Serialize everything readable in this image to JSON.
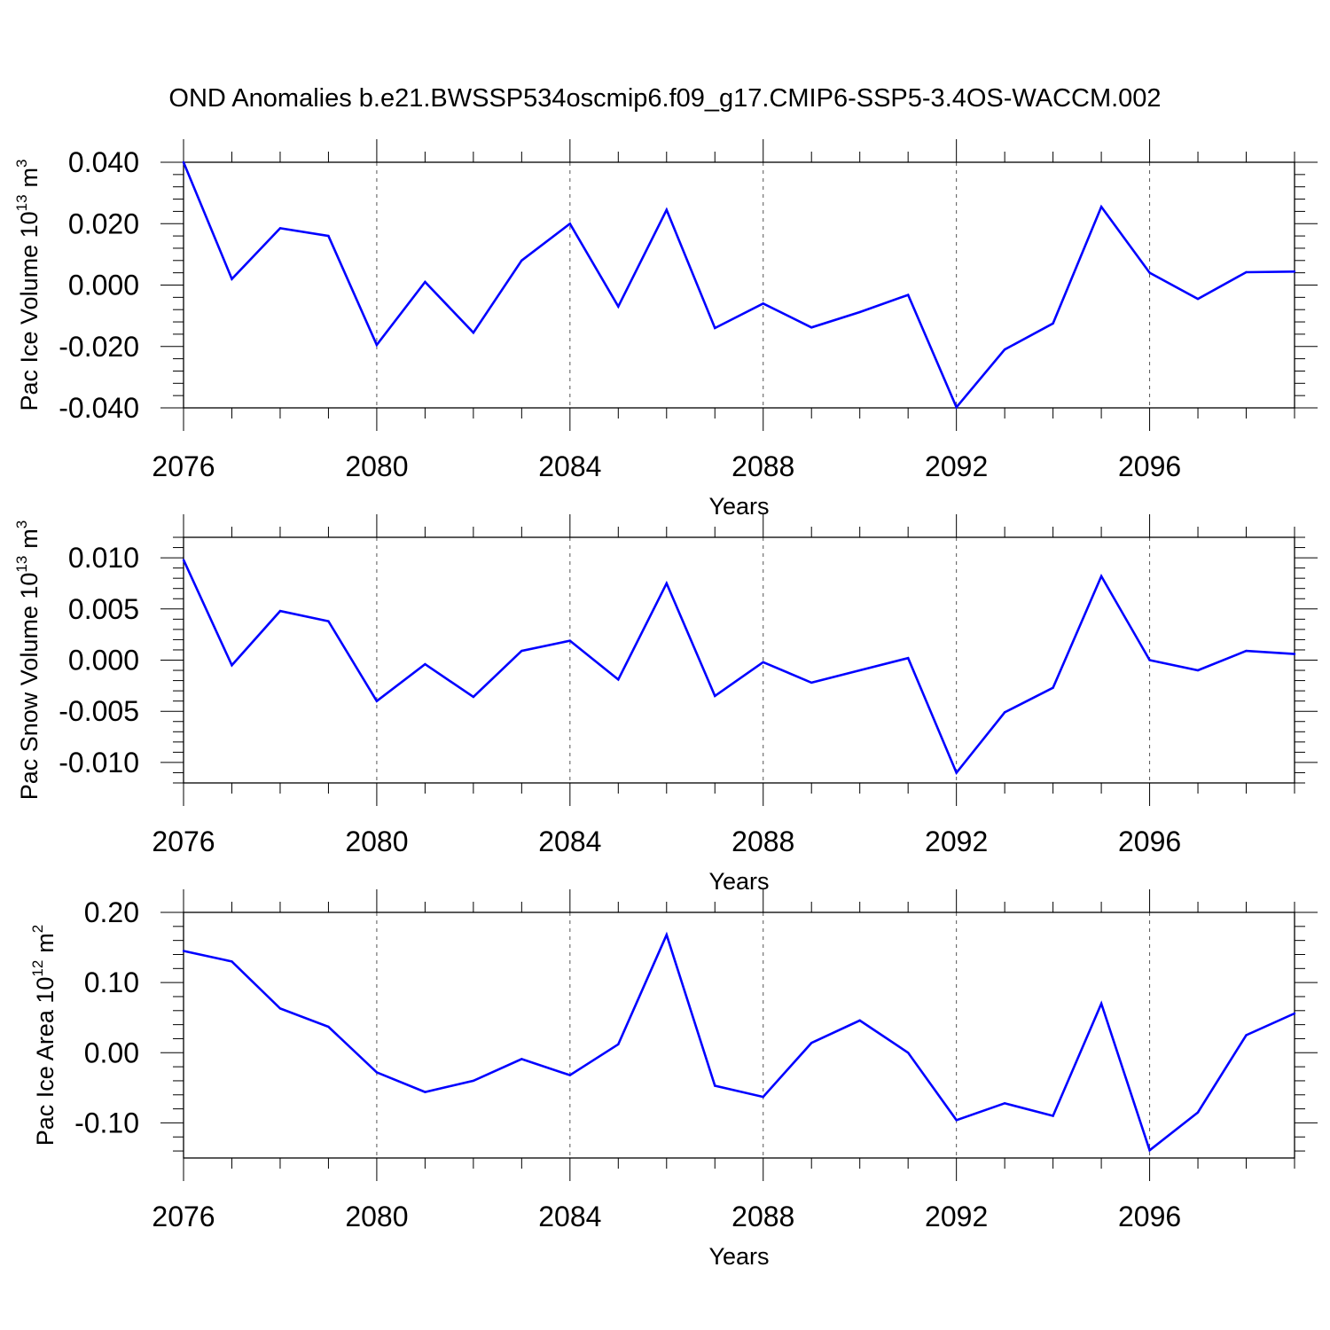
{
  "chart_data": {
    "title": "OND Anomalies b.e21.BWSSP534oscmip6.f09_g17.CMIP6-SSP5-3.4OS-WACCM.002",
    "line_color": "#0000ff",
    "panels": [
      {
        "type": "line",
        "ylabel_main": "Pac Ice Volume 10",
        "ylabel_exp": "13",
        "ylabel_unit": "m",
        "ylabel_unit_exp": "3",
        "xlabel": "Years",
        "xlim": [
          2076,
          2099
        ],
        "ylim": [
          -0.04,
          0.04
        ],
        "xticks": [
          2076,
          2080,
          2084,
          2088,
          2092,
          2096
        ],
        "xtick_labels": [
          "2076",
          "2080",
          "2084",
          "2088",
          "2092",
          "2096"
        ],
        "yticks": [
          0.04,
          0.02,
          0.0,
          -0.02,
          -0.04
        ],
        "ytick_labels": [
          "0.040",
          "0.020",
          "0.000",
          "-0.020",
          "-0.040"
        ],
        "grid": "vertical dashed at major x ticks",
        "x": [
          2076,
          2077,
          2078,
          2079,
          2080,
          2081,
          2082,
          2083,
          2084,
          2085,
          2086,
          2087,
          2088,
          2089,
          2090,
          2091,
          2092,
          2093,
          2094,
          2095,
          2096,
          2097,
          2098,
          2099
        ],
        "values": [
          0.04,
          0.002,
          0.0185,
          0.016,
          -0.0195,
          0.001,
          -0.0155,
          0.008,
          0.02,
          -0.007,
          0.0245,
          -0.014,
          -0.006,
          -0.0138,
          -0.0088,
          -0.0032,
          -0.0398,
          -0.021,
          -0.0125,
          0.0255,
          0.004,
          -0.0045,
          0.0042,
          0.0044
        ]
      },
      {
        "type": "line",
        "ylabel_main": "Pac Snow Volume 10",
        "ylabel_exp": "13",
        "ylabel_unit": "m",
        "ylabel_unit_exp": "3",
        "xlabel": "Years",
        "xlim": [
          2076,
          2099
        ],
        "ylim": [
          -0.012,
          0.012
        ],
        "xticks": [
          2076,
          2080,
          2084,
          2088,
          2092,
          2096
        ],
        "xtick_labels": [
          "2076",
          "2080",
          "2084",
          "2088",
          "2092",
          "2096"
        ],
        "yticks": [
          0.01,
          0.005,
          0.0,
          -0.005,
          -0.01
        ],
        "ytick_labels": [
          "0.010",
          "0.005",
          "0.000",
          "-0.005",
          "-0.010"
        ],
        "grid": "vertical dashed at major x ticks",
        "x": [
          2076,
          2077,
          2078,
          2079,
          2080,
          2081,
          2082,
          2083,
          2084,
          2085,
          2086,
          2087,
          2088,
          2089,
          2090,
          2091,
          2092,
          2093,
          2094,
          2095,
          2096,
          2097,
          2098,
          2099
        ],
        "values": [
          0.0098,
          -0.0005,
          0.0048,
          0.0038,
          -0.004,
          -0.0004,
          -0.0036,
          0.0009,
          0.0019,
          -0.0019,
          0.0075,
          -0.0035,
          -0.0002,
          -0.0022,
          -0.001,
          0.0002,
          -0.011,
          -0.0051,
          -0.0027,
          0.0082,
          0.0,
          -0.001,
          0.0009,
          0.0006
        ]
      },
      {
        "type": "line",
        "ylabel_main": "Pac Ice Area 10",
        "ylabel_exp": "12",
        "ylabel_unit": "m",
        "ylabel_unit_exp": "2",
        "xlabel": "Years",
        "xlim": [
          2076,
          2099
        ],
        "ylim": [
          -0.15,
          0.2
        ],
        "xticks": [
          2076,
          2080,
          2084,
          2088,
          2092,
          2096
        ],
        "xtick_labels": [
          "2076",
          "2080",
          "2084",
          "2088",
          "2092",
          "2096"
        ],
        "yticks": [
          0.2,
          0.1,
          0.0,
          -0.1
        ],
        "ytick_labels": [
          "0.20",
          "0.10",
          "0.00",
          "-0.10"
        ],
        "grid": "vertical dashed at major x ticks",
        "x": [
          2076,
          2077,
          2078,
          2079,
          2080,
          2081,
          2082,
          2083,
          2084,
          2085,
          2086,
          2087,
          2088,
          2089,
          2090,
          2091,
          2092,
          2093,
          2094,
          2095,
          2096,
          2097,
          2098,
          2099
        ],
        "values": [
          0.145,
          0.13,
          0.063,
          0.037,
          -0.028,
          -0.056,
          -0.04,
          -0.009,
          -0.032,
          0.012,
          0.168,
          -0.047,
          -0.063,
          0.014,
          0.046,
          0.0,
          -0.096,
          -0.072,
          -0.09,
          0.07,
          -0.139,
          -0.085,
          0.025,
          0.056
        ]
      }
    ]
  }
}
